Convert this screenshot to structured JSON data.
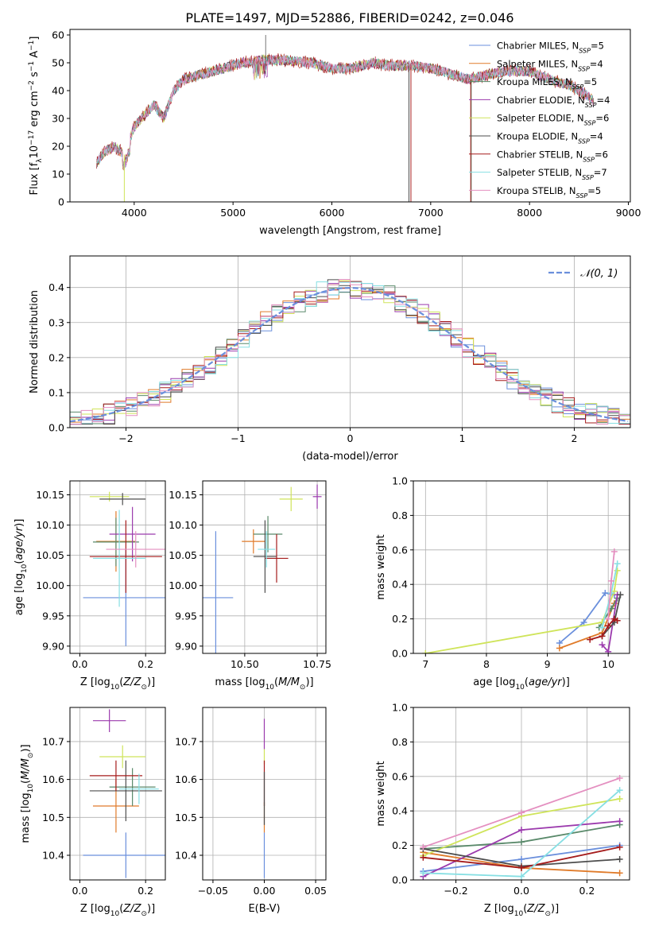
{
  "figure_title": "PLATE=1497, MJD=52886, FIBERID=0242, z=0.046",
  "colors": [
    "#6a8fdc",
    "#e07b2a",
    "#59896a",
    "#9b3aad",
    "#cfe45a",
    "#4d4d4d",
    "#a51c1c",
    "#86dfe3",
    "#e48fc0"
  ],
  "legend_spectrum": [
    {
      "name": "Chabrier MILES, ",
      "nssp": "=5"
    },
    {
      "name": "Salpeter MILES, ",
      "nssp": "=4"
    },
    {
      "name": "Kroupa MILES, ",
      "nssp": "=5"
    },
    {
      "name": "Chabrier ELODIE, ",
      "nssp": "=4"
    },
    {
      "name": "Salpeter ELODIE, ",
      "nssp": "=6"
    },
    {
      "name": "Kroupa ELODIE, ",
      "nssp": "=4"
    },
    {
      "name": "Chabrier STELIB, ",
      "nssp": "=6"
    },
    {
      "name": "Salpeter STELIB, ",
      "nssp": "=7"
    },
    {
      "name": "Kroupa STELIB, ",
      "nssp": "=5"
    }
  ],
  "chart_data": [
    {
      "id": "spectrum",
      "type": "line",
      "xlabel": "wavelength [Angstrom, rest frame]",
      "ylabel": "Flux [fλ 10⁻¹⁷ erg cm⁻² s⁻¹ A⁻¹]",
      "xlim": [
        3350,
        9020
      ],
      "ylim": [
        0,
        62
      ],
      "xticks": [
        4000,
        5000,
        6000,
        7000,
        8000,
        9000
      ],
      "yticks": [
        0,
        10,
        20,
        30,
        40,
        50,
        60
      ],
      "continuum": [
        [
          3620,
          14
        ],
        [
          3700,
          18
        ],
        [
          3800,
          20
        ],
        [
          3900,
          17
        ],
        [
          4000,
          27
        ],
        [
          4100,
          31
        ],
        [
          4200,
          35
        ],
        [
          4300,
          30
        ],
        [
          4400,
          40
        ],
        [
          4500,
          44
        ],
        [
          4700,
          46
        ],
        [
          4900,
          48
        ],
        [
          5100,
          50
        ],
        [
          5300,
          51
        ],
        [
          5500,
          51
        ],
        [
          5800,
          50
        ],
        [
          6000,
          48
        ],
        [
          6200,
          48
        ],
        [
          6400,
          50
        ],
        [
          6600,
          49
        ],
        [
          6800,
          49
        ],
        [
          7000,
          48
        ],
        [
          7200,
          46
        ],
        [
          7400,
          44
        ],
        [
          7600,
          46
        ],
        [
          7800,
          47
        ],
        [
          8000,
          47
        ],
        [
          8200,
          44
        ],
        [
          8400,
          42
        ],
        [
          8600,
          38
        ],
        [
          8650,
          36
        ]
      ],
      "spikes": [
        {
          "series": 4,
          "x": 3900,
          "y": 0
        },
        {
          "series": 5,
          "x": 6780,
          "y": 0
        },
        {
          "series": 6,
          "x": 6800,
          "y": 0
        },
        {
          "series": 2,
          "x": 7410,
          "y": 0
        },
        {
          "series": 6,
          "x": 7405,
          "y": 0
        }
      ]
    },
    {
      "id": "residuals",
      "type": "histogram",
      "xlabel": "(data-model)/error",
      "ylabel": "Normed distribution",
      "xlim": [
        -2.5,
        2.5
      ],
      "ylim": [
        0,
        0.49
      ],
      "xticks": [
        -2,
        -1,
        0,
        1,
        2
      ],
      "yticks": [
        0.0,
        0.1,
        0.2,
        0.3,
        0.4
      ],
      "bin_width": 0.1,
      "reference": {
        "name": "𝒩(0, 1)",
        "mean": 0,
        "sigma": 1
      }
    },
    {
      "id": "age_vs_Z",
      "type": "errorbar",
      "xlabel": "Z [log₁₀(Z/Z⊙)]",
      "ylabel": "age  [log₁₀(age/yr)]",
      "xlim": [
        -0.03,
        0.26
      ],
      "ylim": [
        9.888,
        10.173
      ],
      "xticks": [
        0.0,
        0.2
      ],
      "yticks": [
        9.9,
        9.95,
        10.0,
        10.05,
        10.1,
        10.15
      ],
      "points": [
        {
          "series": 0,
          "x": 0.14,
          "y": 9.98,
          "xerr": 0.13,
          "yerr": 0.08
        },
        {
          "series": 1,
          "x": 0.11,
          "y": 10.073,
          "xerr": 0.06,
          "yerr": 0.05
        },
        {
          "series": 2,
          "x": 0.11,
          "y": 10.072,
          "xerr": 0.07,
          "yerr": 0.04
        },
        {
          "series": 3,
          "x": 0.16,
          "y": 10.085,
          "xerr": 0.07,
          "yerr": 0.045
        },
        {
          "series": 4,
          "x": 0.09,
          "y": 10.147,
          "xerr": 0.06,
          "yerr": 0.008
        },
        {
          "series": 5,
          "x": 0.13,
          "y": 10.143,
          "xerr": 0.07,
          "yerr": 0.01
        },
        {
          "series": 6,
          "x": 0.14,
          "y": 10.048,
          "xerr": 0.11,
          "yerr": 0.06
        },
        {
          "series": 7,
          "x": 0.12,
          "y": 10.045,
          "xerr": 0.08,
          "yerr": 0.08
        },
        {
          "series": 8,
          "x": 0.17,
          "y": 10.06,
          "xerr": 0.09,
          "yerr": 0.03
        }
      ]
    },
    {
      "id": "age_vs_mass",
      "type": "errorbar",
      "xlabel": "mass [log₁₀(M/M⊙)]",
      "ylabel": "",
      "xlim": [
        10.355,
        10.78
      ],
      "ylim": [
        9.888,
        10.173
      ],
      "xticks": [
        10.5,
        10.75
      ],
      "xticklabels": [
        "10.50",
        "10.75"
      ],
      "yticks": [
        9.9,
        9.95,
        10.0,
        10.05,
        10.1,
        10.15
      ],
      "points": [
        {
          "series": 0,
          "x": 10.4,
          "y": 9.98,
          "xerr": 0.06,
          "yerr": 0.11
        },
        {
          "series": 1,
          "x": 10.53,
          "y": 10.073,
          "xerr": 0.04,
          "yerr": 0.02
        },
        {
          "series": 2,
          "x": 10.58,
          "y": 10.085,
          "xerr": 0.05,
          "yerr": 0.03
        },
        {
          "series": 3,
          "x": 10.75,
          "y": 10.147,
          "xerr": 0.015,
          "yerr": 0.02
        },
        {
          "series": 4,
          "x": 10.66,
          "y": 10.143,
          "xerr": 0.04,
          "yerr": 0.02
        },
        {
          "series": 5,
          "x": 10.57,
          "y": 10.048,
          "xerr": 0.04,
          "yerr": 0.06
        },
        {
          "series": 6,
          "x": 10.61,
          "y": 10.045,
          "xerr": 0.04,
          "yerr": 0.04
        },
        {
          "series": 7,
          "x": 10.575,
          "y": 10.06,
          "xerr": 0.03,
          "yerr": 0.03
        }
      ]
    },
    {
      "id": "mass_weight_vs_age",
      "type": "line",
      "xlabel": "age  [log₁₀(age/yr)]",
      "ylabel": "mass weight",
      "xlim": [
        6.8,
        10.35
      ],
      "ylim": [
        0,
        1.0
      ],
      "xticks": [
        7,
        8,
        9,
        10
      ],
      "yticks": [
        0.0,
        0.2,
        0.4,
        0.6,
        0.8,
        1.0
      ],
      "series": [
        {
          "series": 0,
          "x": [
            9.2,
            9.6,
            9.95,
            10.1
          ],
          "y": [
            0.06,
            0.18,
            0.35,
            0.34
          ]
        },
        {
          "series": 1,
          "x": [
            9.2,
            9.9,
            10.1
          ],
          "y": [
            0.03,
            0.12,
            0.29
          ]
        },
        {
          "series": 2,
          "x": [
            9.85,
            10.05,
            10.15
          ],
          "y": [
            0.15,
            0.26,
            0.32
          ]
        },
        {
          "series": 3,
          "x": [
            9.9,
            10.0,
            10.15
          ],
          "y": [
            0.05,
            0.01,
            0.34
          ]
        },
        {
          "series": 4,
          "x": [
            7.0,
            9.9,
            10.1,
            10.15
          ],
          "y": [
            0.0,
            0.18,
            0.36,
            0.48
          ]
        },
        {
          "series": 5,
          "x": [
            9.9,
            10.1,
            10.2
          ],
          "y": [
            0.1,
            0.18,
            0.34
          ]
        },
        {
          "series": 6,
          "x": [
            9.7,
            9.9,
            10.0,
            10.1,
            10.15
          ],
          "y": [
            0.08,
            0.1,
            0.16,
            0.2,
            0.19
          ]
        },
        {
          "series": 7,
          "x": [
            9.9,
            10.05,
            10.15
          ],
          "y": [
            0.15,
            0.35,
            0.52
          ]
        },
        {
          "series": 8,
          "x": [
            10.0,
            10.05,
            10.1
          ],
          "y": [
            0.2,
            0.42,
            0.59
          ]
        }
      ]
    },
    {
      "id": "mass_vs_Z",
      "type": "errorbar",
      "xlabel": "Z [log₁₀(Z/Z⊙)]",
      "ylabel": "mass [log₁₀(M/M⊙)]",
      "xlim": [
        -0.03,
        0.26
      ],
      "ylim": [
        10.335,
        10.79
      ],
      "xticks": [
        0.0,
        0.2
      ],
      "yticks": [
        10.4,
        10.5,
        10.6,
        10.7
      ],
      "points": [
        {
          "series": 0,
          "x": 0.14,
          "y": 10.4,
          "xerr": 0.13,
          "yerr": 0.06
        },
        {
          "series": 1,
          "x": 0.11,
          "y": 10.53,
          "xerr": 0.07,
          "yerr": 0.07
        },
        {
          "series": 2,
          "x": 0.16,
          "y": 10.58,
          "xerr": 0.07,
          "yerr": 0.05
        },
        {
          "series": 3,
          "x": 0.09,
          "y": 10.755,
          "xerr": 0.05,
          "yerr": 0.03
        },
        {
          "series": 4,
          "x": 0.13,
          "y": 10.66,
          "xerr": 0.07,
          "yerr": 0.03
        },
        {
          "series": 5,
          "x": 0.14,
          "y": 10.57,
          "xerr": 0.11,
          "yerr": 0.08
        },
        {
          "series": 6,
          "x": 0.11,
          "y": 10.61,
          "xerr": 0.08,
          "yerr": 0.04
        },
        {
          "series": 7,
          "x": 0.18,
          "y": 10.575,
          "xerr": 0.06,
          "yerr": 0.04
        }
      ]
    },
    {
      "id": "mass_vs_ebv",
      "type": "errorbar",
      "xlabel": "E(B-V)",
      "ylabel": "",
      "xlim": [
        -0.06,
        0.06
      ],
      "ylim": [
        10.335,
        10.79
      ],
      "xticks": [
        -0.05,
        0.0,
        0.05
      ],
      "yticks": [
        10.4,
        10.5,
        10.6,
        10.7
      ],
      "points": [
        {
          "series": 0,
          "x": 0.0,
          "y": 10.4,
          "xerr": 0.0,
          "yerr": 0.06
        },
        {
          "series": 1,
          "x": 0.0,
          "y": 10.5,
          "xerr": 0.0,
          "yerr": 0.04
        },
        {
          "series": 3,
          "x": 0.0,
          "y": 10.72,
          "xerr": 0.0,
          "yerr": 0.04
        },
        {
          "series": 4,
          "x": 0.0,
          "y": 10.66,
          "xerr": 0.0,
          "yerr": 0.02
        },
        {
          "series": 6,
          "x": 0.0,
          "y": 10.59,
          "xerr": 0.0,
          "yerr": 0.06
        },
        {
          "series": 5,
          "x": 0.0,
          "y": 10.55,
          "xerr": 0.0,
          "yerr": 0.07
        }
      ]
    },
    {
      "id": "mass_weight_vs_Z",
      "type": "line",
      "xlabel": "Z [log₁₀(Z/Z⊙)]",
      "ylabel": "mass weight",
      "xlim": [
        -0.33,
        0.33
      ],
      "ylim": [
        0,
        1.0
      ],
      "xticks": [
        -0.2,
        0.0,
        0.2
      ],
      "yticks": [
        0.0,
        0.2,
        0.4,
        0.6,
        0.8,
        1.0
      ],
      "series": [
        {
          "series": 0,
          "x": [
            -0.3,
            0.0,
            0.3
          ],
          "y": [
            0.05,
            0.12,
            0.2
          ]
        },
        {
          "series": 1,
          "x": [
            -0.3,
            0.0,
            0.3
          ],
          "y": [
            0.16,
            0.07,
            0.04
          ]
        },
        {
          "series": 2,
          "x": [
            -0.3,
            0.0,
            0.3
          ],
          "y": [
            0.18,
            0.22,
            0.32
          ]
        },
        {
          "series": 3,
          "x": [
            -0.3,
            0.0,
            0.3
          ],
          "y": [
            0.02,
            0.29,
            0.34
          ]
        },
        {
          "series": 4,
          "x": [
            -0.3,
            0.0,
            0.3
          ],
          "y": [
            0.14,
            0.37,
            0.47
          ]
        },
        {
          "series": 5,
          "x": [
            -0.3,
            0.0,
            0.3
          ],
          "y": [
            0.18,
            0.08,
            0.12
          ]
        },
        {
          "series": 6,
          "x": [
            -0.3,
            0.0,
            0.3
          ],
          "y": [
            0.13,
            0.07,
            0.19
          ]
        },
        {
          "series": 7,
          "x": [
            -0.3,
            0.0,
            0.3
          ],
          "y": [
            0.04,
            0.02,
            0.52
          ]
        },
        {
          "series": 8,
          "x": [
            -0.3,
            0.0,
            0.3
          ],
          "y": [
            0.19,
            0.39,
            0.59
          ]
        }
      ]
    }
  ]
}
